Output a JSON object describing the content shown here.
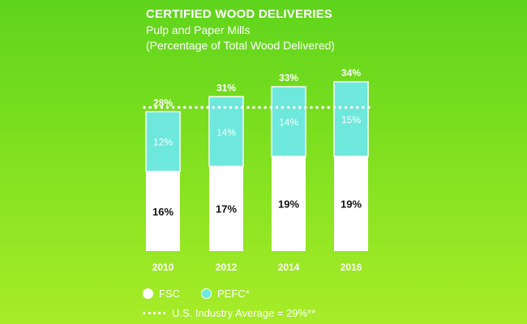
{
  "header": {
    "title": "CERTIFIED WOOD DELIVERIES",
    "subtitle_line1": "Pulp and Paper Mills",
    "subtitle_line2": "(Percentage of Total Wood Delivered)"
  },
  "chart_data": {
    "type": "bar",
    "stacked": true,
    "categories": [
      "2010",
      "2012",
      "2014",
      "2016"
    ],
    "series": [
      {
        "name": "FSC",
        "values": [
          16,
          17,
          19,
          19
        ],
        "labels": [
          "16%",
          "17%",
          "19%",
          "19%"
        ],
        "color": "#ffffff"
      },
      {
        "name": "PEFC*",
        "values": [
          12,
          14,
          14,
          15
        ],
        "labels": [
          "12%",
          "14%",
          "14%",
          "15%"
        ],
        "color": "#6ee8dc"
      }
    ],
    "totals": [
      28,
      31,
      33,
      34
    ],
    "total_labels": [
      "28%",
      "31%",
      "33%",
      "34%"
    ],
    "reference_line": {
      "name": "U.S. Industry Average = 29%**",
      "value": 29
    },
    "ylim": [
      0,
      35
    ],
    "grid": false,
    "legend_position": "bottom-left"
  },
  "legend": {
    "fsc_label": "FSC",
    "pefc_label": "PEFC*",
    "average_label": "U.S. Industry Average = 29%**"
  },
  "colors": {
    "background_top": "#5fd41c",
    "background_bottom": "#a8ec28",
    "fsc": "#ffffff",
    "pefc": "#6ee8dc",
    "text_dark": "#111111",
    "text_light": "#ffffff"
  }
}
